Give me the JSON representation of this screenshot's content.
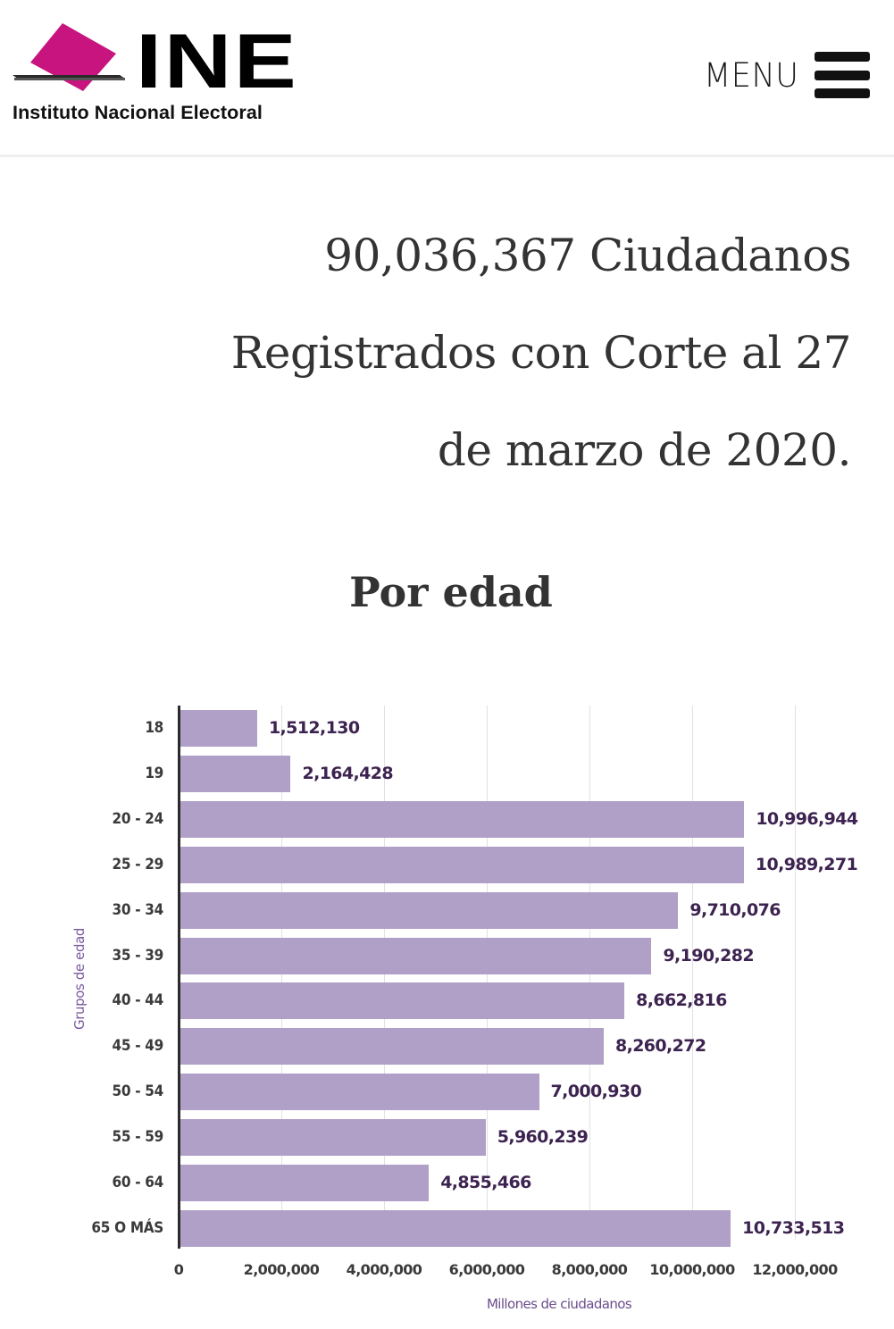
{
  "header": {
    "logo_word": "INE",
    "logo_subtitle": "Instituto Nacional Electoral",
    "menu_label": "MENU",
    "brand_color": "#c8147f"
  },
  "headline": {
    "lines": [
      "90,036,367 Ciudadanos",
      "Registrados con Corte al 27",
      "de marzo de 2020."
    ]
  },
  "section": {
    "title": "Por edad"
  },
  "chart_data": {
    "type": "bar",
    "orientation": "horizontal",
    "title": "Por edad",
    "xlabel": "Millones de ciudadanos",
    "ylabel": "Grupos de edad",
    "categories": [
      "18",
      "19",
      "20 - 24",
      "25 - 29",
      "30 - 34",
      "35 - 39",
      "40 - 44",
      "45 - 49",
      "50 - 54",
      "55 - 59",
      "60 - 64",
      "65 O MÁS"
    ],
    "values": [
      1512130,
      2164428,
      10996944,
      10989271,
      9710076,
      9190282,
      8662816,
      8260272,
      7000930,
      5960239,
      4855466,
      10733513
    ],
    "value_labels": [
      "1,512,130",
      "2,164,428",
      "10,996,944",
      "10,989,271",
      "9,710,076",
      "9,190,282",
      "8,662,816",
      "8,260,272",
      "7,000,930",
      "5,960,239",
      "4,855,466",
      "10,733,513"
    ],
    "xlim": [
      0,
      12000000
    ],
    "xticks": [
      0,
      2000000,
      4000000,
      6000000,
      8000000,
      10000000,
      12000000
    ],
    "xtick_labels": [
      "0",
      "2,000,000",
      "4,000,000",
      "6,000,000",
      "8,000,000",
      "10,000,000",
      "12,000,000"
    ],
    "grid": true,
    "legend": "none",
    "bar_color": "#b09fc7",
    "label_color": "#3d2350"
  }
}
